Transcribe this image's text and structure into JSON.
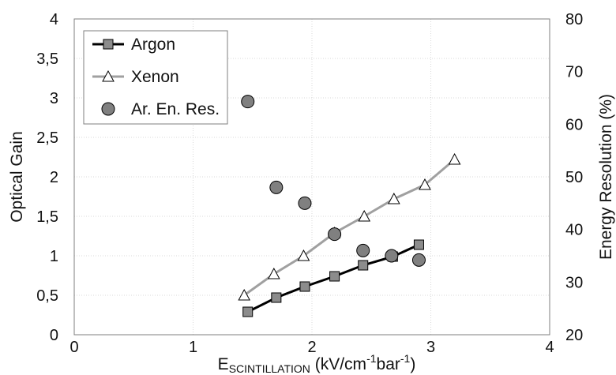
{
  "chart_data": {
    "type": "scatter",
    "x_axis": {
      "label_main": "E",
      "label_sub": "SCINTILLATION",
      "label_rest_1": " (kV/cm",
      "label_sup_1": "-1",
      "label_rest_2": "bar",
      "label_sup_2": "-1",
      "label_rest_3": ")",
      "min": 0,
      "max": 4,
      "ticks": [
        0,
        1,
        2,
        3,
        4
      ],
      "tick_labels": [
        "0",
        "1",
        "2",
        "3",
        "4"
      ]
    },
    "y_axis_left": {
      "label": "Optical Gain",
      "min": 0,
      "max": 4,
      "ticks": [
        0,
        0.5,
        1,
        1.5,
        2,
        2.5,
        3,
        3.5,
        4
      ],
      "tick_labels": [
        "0",
        "0,5",
        "1",
        "1,5",
        "2",
        "2,5",
        "3",
        "3,5",
        "4"
      ]
    },
    "y_axis_right": {
      "label": "Energy Resolution (%)",
      "min": 20,
      "max": 80,
      "ticks": [
        20,
        30,
        40,
        50,
        60,
        70,
        80
      ],
      "tick_labels": [
        "20",
        "30",
        "40",
        "50",
        "60",
        "70",
        "80"
      ]
    },
    "grid": true,
    "legend_position": "top-left",
    "series": [
      {
        "name": "Argon",
        "axis": "left",
        "style": "line-square",
        "color": "#000000",
        "marker_fill": "#8c8c8c",
        "x": [
          1.46,
          1.7,
          1.94,
          2.19,
          2.43,
          2.68,
          2.9
        ],
        "y": [
          0.29,
          0.47,
          0.61,
          0.74,
          0.88,
          0.99,
          1.14
        ]
      },
      {
        "name": "Xenon",
        "axis": "left",
        "style": "line-triangle",
        "color": "#a0a0a0",
        "marker_fill": "#ffffff",
        "x": [
          1.43,
          1.68,
          1.93,
          2.19,
          2.44,
          2.69,
          2.95,
          3.2
        ],
        "y": [
          0.5,
          0.77,
          1.0,
          1.29,
          1.5,
          1.72,
          1.9,
          2.22
        ]
      },
      {
        "name": "Ar. En. Res.",
        "axis": "right",
        "style": "circle",
        "color": "#000000",
        "marker_fill": "#808080",
        "x": [
          1.46,
          1.7,
          1.94,
          2.19,
          2.43,
          2.67,
          2.9
        ],
        "y": [
          64.3,
          48.0,
          45.0,
          39.1,
          36.0,
          35.0,
          34.2
        ]
      }
    ]
  }
}
